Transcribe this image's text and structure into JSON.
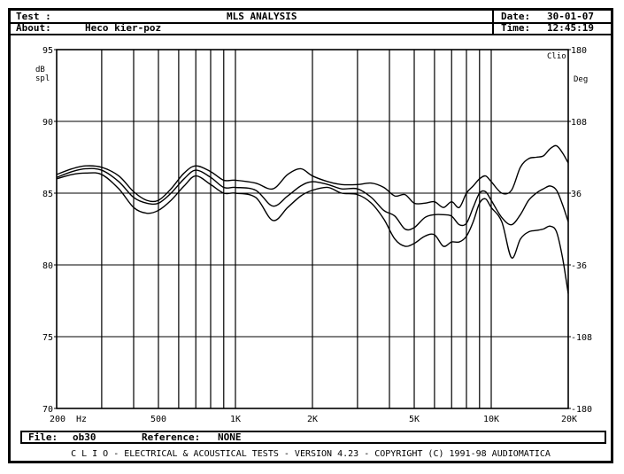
{
  "header": {
    "test_label": "Test :",
    "title": "MLS ANALYSIS",
    "date_label": "Date:",
    "date_value": "30-01-07",
    "about_label": "About:",
    "about_value": "Heco kier-poz",
    "time_label": "Time:",
    "time_value": "12:45:19"
  },
  "chart_data": {
    "type": "line",
    "xscale": "log",
    "xlim": [
      200,
      20000
    ],
    "ylim": [
      70,
      95
    ],
    "y2lim": [
      -180,
      180
    ],
    "grid": true,
    "ylabel": "dB spl",
    "y2label": "Deg",
    "brand": "Clio",
    "x_ticks": [
      {
        "value": 200,
        "label": "200"
      },
      {
        "value": 500,
        "label": "500"
      },
      {
        "value": 1000,
        "label": "1K"
      },
      {
        "value": 2000,
        "label": "2K"
      },
      {
        "value": 5000,
        "label": "5K"
      },
      {
        "value": 10000,
        "label": "10K"
      },
      {
        "value": 20000,
        "label": "20K"
      }
    ],
    "x_unit": "Hz",
    "y_ticks": [
      95,
      90,
      85,
      80,
      75,
      70
    ],
    "y2_ticks": [
      180,
      108,
      36,
      -36,
      -108,
      -180
    ],
    "series": [
      {
        "x": [
          200,
          230,
          260,
          300,
          350,
          400,
          450,
          500,
          560,
          630,
          700,
          800,
          900,
          1000,
          1200,
          1400,
          1600,
          1800,
          2000,
          2300,
          2600,
          3000,
          3400,
          3800,
          4200,
          4600,
          5000,
          5500,
          6000,
          6500,
          7000,
          7500,
          8000,
          8500,
          9000,
          9500,
          10000,
          11000,
          12000,
          13000,
          14000,
          15000,
          16000,
          17000,
          18000,
          19000,
          20000
        ],
        "y": [
          86.3,
          86.7,
          86.9,
          86.8,
          86.2,
          85.1,
          84.5,
          84.5,
          85.3,
          86.4,
          86.9,
          86.5,
          85.9,
          85.9,
          85.7,
          85.3,
          86.3,
          86.7,
          86.2,
          85.8,
          85.6,
          85.6,
          85.7,
          85.4,
          84.8,
          84.9,
          84.3,
          84.3,
          84.4,
          84.0,
          84.4,
          84.0,
          85.0,
          85.5,
          86.0,
          86.2,
          85.8,
          85.0,
          85.2,
          86.8,
          87.4,
          87.5,
          87.6,
          88.1,
          88.3,
          87.8,
          87.1
        ]
      },
      {
        "x": [
          200,
          230,
          260,
          300,
          350,
          400,
          450,
          500,
          560,
          630,
          700,
          800,
          900,
          1000,
          1200,
          1400,
          1600,
          1800,
          2000,
          2300,
          2600,
          3000,
          3400,
          3800,
          4200,
          4600,
          5000,
          5500,
          6000,
          6500,
          7000,
          7500,
          8000,
          8500,
          9000,
          9500,
          10000,
          11000,
          12000,
          13000,
          14000,
          15000,
          16000,
          17000,
          18000,
          19000,
          20000
        ],
        "y": [
          86.1,
          86.5,
          86.7,
          86.6,
          85.8,
          84.7,
          84.3,
          84.3,
          85.0,
          86.0,
          86.6,
          86.1,
          85.4,
          85.4,
          85.2,
          84.1,
          84.8,
          85.5,
          85.8,
          85.6,
          85.3,
          85.3,
          84.7,
          83.8,
          83.4,
          82.5,
          82.6,
          83.3,
          83.5,
          83.5,
          83.4,
          82.8,
          82.9,
          84.0,
          85.0,
          85.1,
          84.5,
          83.3,
          82.8,
          83.5,
          84.5,
          85.0,
          85.3,
          85.5,
          85.2,
          84.2,
          83.0
        ]
      },
      {
        "x": [
          200,
          230,
          260,
          300,
          350,
          400,
          450,
          500,
          560,
          630,
          700,
          800,
          900,
          1000,
          1200,
          1400,
          1600,
          1800,
          2000,
          2300,
          2600,
          3000,
          3400,
          3800,
          4200,
          4600,
          5000,
          5500,
          6000,
          6500,
          7000,
          7500,
          8000,
          8500,
          9000,
          9500,
          10000,
          11000,
          12000,
          13000,
          14000,
          15000,
          16000,
          17000,
          18000,
          19000,
          20000
        ],
        "y": [
          86.0,
          86.3,
          86.4,
          86.3,
          85.3,
          84.0,
          83.6,
          83.8,
          84.5,
          85.5,
          86.2,
          85.6,
          85.0,
          85.0,
          84.7,
          83.1,
          84.0,
          84.8,
          85.2,
          85.4,
          85.0,
          84.9,
          84.3,
          83.2,
          81.8,
          81.3,
          81.5,
          82.0,
          82.1,
          81.3,
          81.6,
          81.6,
          82.0,
          83.0,
          84.3,
          84.6,
          84.0,
          83.0,
          80.5,
          81.8,
          82.3,
          82.4,
          82.5,
          82.7,
          82.3,
          80.5,
          78.0
        ]
      }
    ]
  },
  "footer": {
    "file_label": "File:",
    "file_value": "ob30",
    "reference_label": "Reference:",
    "reference_value": "NONE",
    "copyright_line": "C L I O  -  ELECTRICAL & ACOUSTICAL TESTS  -  VERSION 4.23  -  COPYRIGHT (C) 1991-98 AUDIOMATICA"
  }
}
